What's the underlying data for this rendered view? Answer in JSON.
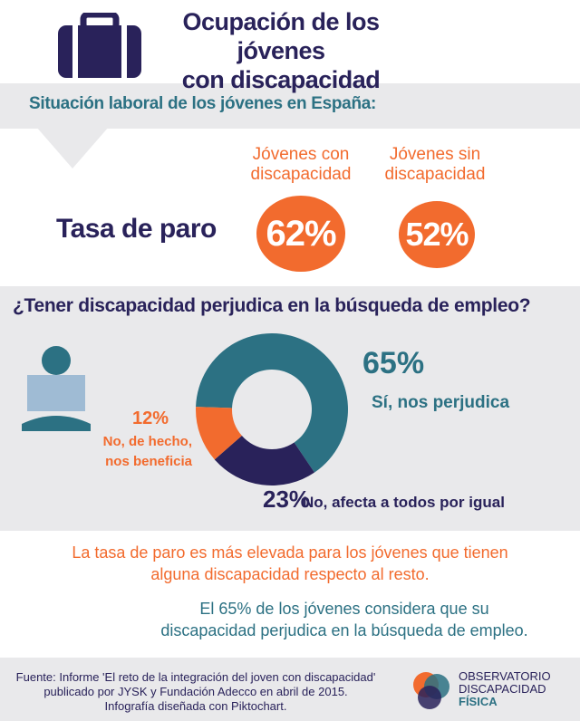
{
  "header": {
    "title_lines": [
      "Ocupación de los jóvenes",
      "con discapacidad"
    ]
  },
  "section1": {
    "title": "Situación laboral de los jóvenes en España:",
    "row_label": "Tasa de paro",
    "groups": [
      {
        "label_lines": [
          "Jóvenes con",
          "discapacidad"
        ],
        "value_text": "62%"
      },
      {
        "label_lines": [
          "Jóvenes sin",
          "discapacidad"
        ],
        "value_text": "52%"
      }
    ]
  },
  "section2": {
    "question": "¿Tener discapacidad perjudica en la búsqueda de empleo?"
  },
  "chart_data": {
    "type": "donut",
    "categories": [
      "Sí, nos perjudica",
      "No, afecta a todos por igual",
      "No, de hecho, nos beneficia"
    ],
    "values": [
      65,
      23,
      12
    ],
    "value_labels": [
      "65%",
      "23%",
      "12%"
    ],
    "colors": [
      "#2c7183",
      "#29225a",
      "#f26b2e"
    ]
  },
  "notes": [
    [
      "La tasa de paro es más elevada para los jóvenes que tienen",
      "alguna discapacidad respecto al resto."
    ],
    [
      "El 65% de los jóvenes considera que su",
      "discapacidad perjudica en la búsqueda de empleo."
    ]
  ],
  "footer": {
    "source_lines": [
      "Fuente: Informe 'El reto de la integración del joven con discapacidad'",
      "publicado por JYSK y Fundación Adecco en abril de 2015.",
      "Infografía diseñada con Piktochart."
    ],
    "logo_lines": [
      "OBSERVATORIO",
      "DISCAPACIDAD",
      "FÍSICA"
    ]
  }
}
